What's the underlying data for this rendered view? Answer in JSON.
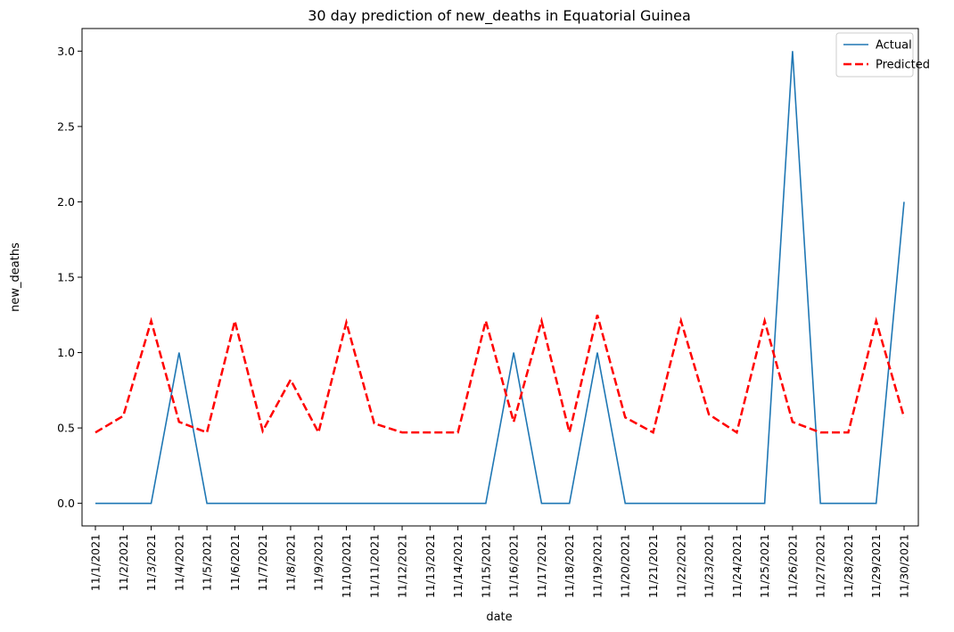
{
  "chart_data": {
    "type": "line",
    "title": "30 day prediction of new_deaths in Equatorial Guinea",
    "xlabel": "date",
    "ylabel": "new_deaths",
    "ylim": [
      -0.15,
      3.15
    ],
    "yticks": [
      "0.0",
      "0.5",
      "1.0",
      "1.5",
      "2.0",
      "2.5",
      "3.0"
    ],
    "ytick_values": [
      0,
      0.5,
      1.0,
      1.5,
      2.0,
      2.5,
      3.0
    ],
    "categories": [
      "11/1/2021",
      "11/2/2021",
      "11/3/2021",
      "11/4/2021",
      "11/5/2021",
      "11/6/2021",
      "11/7/2021",
      "11/8/2021",
      "11/9/2021",
      "11/10/2021",
      "11/11/2021",
      "11/12/2021",
      "11/13/2021",
      "11/14/2021",
      "11/15/2021",
      "11/16/2021",
      "11/17/2021",
      "11/18/2021",
      "11/19/2021",
      "11/20/2021",
      "11/21/2021",
      "11/22/2021",
      "11/23/2021",
      "11/24/2021",
      "11/25/2021",
      "11/26/2021",
      "11/27/2021",
      "11/28/2021",
      "11/29/2021",
      "11/30/2021"
    ],
    "series": [
      {
        "name": "Actual",
        "color": "#1f77b4",
        "style": "solid",
        "values": [
          0,
          0,
          0,
          1,
          0,
          0,
          0,
          0,
          0,
          0,
          0,
          0,
          0,
          0,
          0,
          1,
          0,
          0,
          1,
          0,
          0,
          0,
          0,
          0,
          0,
          3,
          0,
          0,
          0,
          2
        ]
      },
      {
        "name": "Predicted",
        "color": "#ff0000",
        "style": "dashed",
        "values": [
          0.47,
          0.58,
          1.21,
          0.54,
          0.47,
          1.21,
          0.48,
          0.82,
          0.47,
          1.2,
          0.53,
          0.47,
          0.47,
          0.47,
          1.21,
          0.54,
          1.21,
          0.47,
          1.25,
          0.57,
          0.47,
          1.21,
          0.59,
          0.47,
          1.21,
          0.54,
          0.47,
          0.47,
          1.21,
          0.57
        ]
      }
    ],
    "legend_position": "top-right",
    "grid": false
  }
}
